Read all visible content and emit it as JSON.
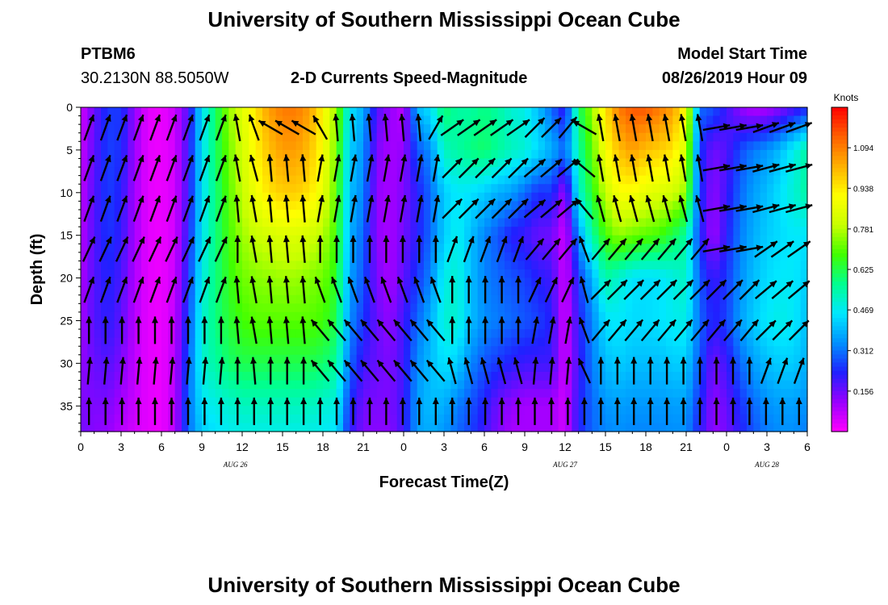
{
  "page": {
    "title": "University of Southern Mississippi Ocean Cube",
    "footer_title": "University of Southern Mississippi Ocean Cube",
    "station_id": "PTBM6",
    "station_coords": "30.2130N 88.5050W",
    "plot_subtitle": "2-D Currents Speed-Magnitude",
    "model_start_label": "Model Start Time",
    "model_start_value": "08/26/2019 Hour 09"
  },
  "chart_data": {
    "type": "heatmap",
    "title": "2-D Currents Speed-Magnitude",
    "xlabel": "Forecast Time(Z)",
    "ylabel": "Depth (ft)",
    "x_tick_labels": [
      "0",
      "3",
      "6",
      "9",
      "12",
      "15",
      "18",
      "21",
      "0",
      "3",
      "6",
      "9",
      "12",
      "15",
      "18",
      "21",
      "0",
      "3",
      "6"
    ],
    "x_range_hours": [
      0,
      54
    ],
    "x_tick_step_hours": 3,
    "date_labels": [
      {
        "text": "AUG 26",
        "hour": 11.5
      },
      {
        "text": "AUG 27",
        "hour": 36
      },
      {
        "text": "AUG 28",
        "hour": 51
      }
    ],
    "y_tick_labels": [
      "0",
      "5",
      "10",
      "15",
      "20",
      "25",
      "30",
      "35"
    ],
    "y_range_ft": [
      0,
      38
    ],
    "y_inverted": true,
    "colorbar": {
      "label": "Knots",
      "tick_labels": [
        "1.094",
        "0.938",
        "0.781",
        "0.625",
        "0.469",
        "0.312",
        "0.156"
      ],
      "range": [
        0,
        1.25
      ],
      "colors": [
        "#ff00ff",
        "#9900ff",
        "#2020ff",
        "#0090ff",
        "#00e8ff",
        "#00ff90",
        "#40ff00",
        "#c8ff00",
        "#ffff00",
        "#ffb000",
        "#ff6000",
        "#ff0000"
      ]
    },
    "speed_grid": {
      "hours": [
        0,
        1,
        2,
        3,
        4,
        5,
        6,
        7,
        8,
        9,
        10,
        11,
        12,
        13,
        14,
        15,
        16,
        17,
        18,
        19,
        20,
        21,
        22,
        23,
        24,
        25,
        26,
        27,
        28,
        29,
        30,
        31,
        32,
        33,
        34,
        35,
        36,
        37,
        38,
        39,
        40,
        41,
        42,
        43,
        44,
        45,
        46,
        47,
        48,
        49,
        50,
        51,
        52,
        53,
        54
      ],
      "depths_ft": [
        0,
        5,
        10,
        15,
        20,
        25,
        30,
        35,
        38
      ],
      "speed_knots": [
        [
          0.05,
          0.16,
          0.25,
          0.25,
          0.12,
          0.03,
          0.02,
          0.06,
          0.18,
          0.45,
          0.6,
          0.75,
          0.85,
          0.95,
          1.05,
          1.1,
          1.1,
          1.05,
          0.92,
          0.75,
          0.45,
          0.38,
          0.18,
          0.12,
          0.07,
          0.4,
          0.45,
          0.6,
          0.55,
          0.55,
          0.58,
          0.55,
          0.5,
          0.48,
          0.4,
          0.3,
          0.2,
          0.6,
          0.75,
          0.95,
          1.1,
          1.15,
          1.15,
          1.1,
          1.05,
          0.9,
          0.3,
          0.28,
          0.2,
          0.12,
          0.08,
          0.09,
          0.13,
          0.18,
          0.23
        ],
        [
          0.06,
          0.17,
          0.26,
          0.24,
          0.11,
          0.03,
          0.02,
          0.05,
          0.2,
          0.45,
          0.6,
          0.72,
          0.82,
          0.92,
          1.0,
          1.05,
          1.05,
          1.0,
          0.9,
          0.72,
          0.42,
          0.35,
          0.14,
          0.1,
          0.12,
          0.28,
          0.34,
          0.52,
          0.55,
          0.58,
          0.6,
          0.56,
          0.52,
          0.5,
          0.44,
          0.38,
          0.3,
          0.55,
          0.7,
          0.9,
          1.0,
          1.05,
          1.0,
          0.98,
          0.95,
          0.82,
          0.25,
          0.15,
          0.18,
          0.27,
          0.32,
          0.35,
          0.4,
          0.48,
          0.55
        ],
        [
          0.07,
          0.18,
          0.26,
          0.22,
          0.1,
          0.03,
          0.02,
          0.05,
          0.2,
          0.45,
          0.58,
          0.7,
          0.8,
          0.88,
          0.95,
          0.98,
          0.98,
          0.95,
          0.86,
          0.7,
          0.4,
          0.33,
          0.12,
          0.1,
          0.14,
          0.22,
          0.3,
          0.42,
          0.46,
          0.45,
          0.42,
          0.38,
          0.36,
          0.3,
          0.24,
          0.25,
          0.1,
          0.5,
          0.65,
          0.8,
          0.9,
          0.9,
          0.86,
          0.84,
          0.82,
          0.75,
          0.25,
          0.12,
          0.2,
          0.3,
          0.36,
          0.4,
          0.45,
          0.5,
          0.55
        ],
        [
          0.08,
          0.18,
          0.25,
          0.21,
          0.1,
          0.03,
          0.02,
          0.05,
          0.22,
          0.46,
          0.58,
          0.68,
          0.76,
          0.8,
          0.82,
          0.84,
          0.84,
          0.82,
          0.78,
          0.68,
          0.38,
          0.3,
          0.12,
          0.1,
          0.15,
          0.22,
          0.3,
          0.42,
          0.48,
          0.4,
          0.33,
          0.28,
          0.22,
          0.2,
          0.16,
          0.15,
          0.05,
          0.35,
          0.55,
          0.68,
          0.75,
          0.72,
          0.7,
          0.68,
          0.62,
          0.55,
          0.24,
          0.1,
          0.22,
          0.32,
          0.38,
          0.42,
          0.44,
          0.46,
          0.45
        ],
        [
          0.09,
          0.18,
          0.23,
          0.19,
          0.09,
          0.03,
          0.02,
          0.06,
          0.24,
          0.48,
          0.58,
          0.66,
          0.72,
          0.74,
          0.75,
          0.76,
          0.76,
          0.74,
          0.72,
          0.65,
          0.36,
          0.28,
          0.14,
          0.1,
          0.17,
          0.25,
          0.33,
          0.48,
          0.5,
          0.4,
          0.33,
          0.3,
          0.28,
          0.26,
          0.22,
          0.2,
          0.05,
          0.25,
          0.38,
          0.55,
          0.5,
          0.45,
          0.44,
          0.45,
          0.48,
          0.52,
          0.28,
          0.2,
          0.25,
          0.34,
          0.4,
          0.44,
          0.46,
          0.46,
          0.42
        ],
        [
          0.1,
          0.18,
          0.22,
          0.17,
          0.08,
          0.03,
          0.02,
          0.07,
          0.26,
          0.5,
          0.58,
          0.64,
          0.68,
          0.7,
          0.7,
          0.7,
          0.7,
          0.7,
          0.68,
          0.62,
          0.34,
          0.25,
          0.16,
          0.12,
          0.2,
          0.3,
          0.38,
          0.5,
          0.5,
          0.4,
          0.34,
          0.32,
          0.3,
          0.28,
          0.26,
          0.22,
          0.04,
          0.22,
          0.33,
          0.45,
          0.46,
          0.44,
          0.44,
          0.45,
          0.47,
          0.48,
          0.3,
          0.22,
          0.26,
          0.36,
          0.42,
          0.46,
          0.48,
          0.46,
          0.4
        ],
        [
          0.12,
          0.16,
          0.18,
          0.14,
          0.07,
          0.03,
          0.02,
          0.08,
          0.28,
          0.5,
          0.55,
          0.6,
          0.62,
          0.62,
          0.62,
          0.62,
          0.62,
          0.62,
          0.6,
          0.56,
          0.3,
          0.2,
          0.16,
          0.14,
          0.2,
          0.34,
          0.4,
          0.45,
          0.42,
          0.33,
          0.28,
          0.25,
          0.22,
          0.2,
          0.2,
          0.2,
          0.05,
          0.2,
          0.32,
          0.4,
          0.42,
          0.4,
          0.4,
          0.4,
          0.42,
          0.42,
          0.28,
          0.15,
          0.2,
          0.3,
          0.36,
          0.4,
          0.42,
          0.42,
          0.38
        ],
        [
          0.14,
          0.14,
          0.14,
          0.1,
          0.06,
          0.03,
          0.02,
          0.08,
          0.3,
          0.45,
          0.48,
          0.5,
          0.52,
          0.52,
          0.52,
          0.52,
          0.52,
          0.52,
          0.5,
          0.48,
          0.24,
          0.15,
          0.14,
          0.14,
          0.2,
          0.36,
          0.4,
          0.38,
          0.32,
          0.28,
          0.22,
          0.15,
          0.12,
          0.1,
          0.1,
          0.1,
          0.05,
          0.22,
          0.3,
          0.35,
          0.36,
          0.35,
          0.35,
          0.35,
          0.36,
          0.36,
          0.24,
          0.12,
          0.16,
          0.24,
          0.3,
          0.34,
          0.36,
          0.36,
          0.34
        ],
        [
          0.15,
          0.13,
          0.12,
          0.08,
          0.05,
          0.03,
          0.02,
          0.08,
          0.3,
          0.42,
          0.45,
          0.47,
          0.48,
          0.48,
          0.48,
          0.48,
          0.48,
          0.48,
          0.47,
          0.45,
          0.22,
          0.14,
          0.13,
          0.13,
          0.2,
          0.36,
          0.38,
          0.35,
          0.3,
          0.26,
          0.2,
          0.14,
          0.1,
          0.1,
          0.1,
          0.1,
          0.05,
          0.22,
          0.3,
          0.33,
          0.34,
          0.33,
          0.33,
          0.33,
          0.34,
          0.34,
          0.22,
          0.12,
          0.15,
          0.22,
          0.28,
          0.32,
          0.34,
          0.34,
          0.32
        ]
      ]
    },
    "direction_grid_deg": {
      "rows": [
        [
          20,
          20,
          20,
          20,
          20,
          20,
          20,
          20,
          20,
          350,
          340,
          300,
          300,
          300,
          330,
          355,
          355,
          355,
          355,
          355,
          355,
          30,
          55,
          55,
          55,
          55,
          55,
          45,
          45,
          40,
          300,
          350,
          350,
          350,
          350,
          350,
          350,
          350,
          80,
          80,
          80,
          70,
          70,
          70
        ],
        [
          20,
          20,
          20,
          20,
          20,
          20,
          20,
          20,
          20,
          350,
          345,
          355,
          355,
          355,
          10,
          10,
          10,
          10,
          10,
          10,
          10,
          10,
          45,
          45,
          45,
          45,
          45,
          50,
          50,
          50,
          310,
          350,
          350,
          350,
          350,
          350,
          350,
          350,
          80,
          80,
          80,
          75,
          75,
          75
        ],
        [
          20,
          20,
          20,
          20,
          20,
          20,
          20,
          20,
          20,
          355,
          350,
          355,
          355,
          355,
          10,
          10,
          10,
          10,
          10,
          10,
          10,
          10,
          45,
          45,
          45,
          45,
          45,
          50,
          50,
          50,
          320,
          345,
          345,
          345,
          345,
          345,
          345,
          345,
          80,
          80,
          80,
          75,
          75,
          75
        ],
        [
          25,
          25,
          25,
          25,
          25,
          25,
          25,
          25,
          25,
          0,
          350,
          355,
          355,
          355,
          0,
          0,
          0,
          0,
          0,
          0,
          0,
          0,
          20,
          20,
          20,
          20,
          20,
          40,
          40,
          40,
          340,
          40,
          40,
          40,
          40,
          40,
          40,
          40,
          80,
          80,
          80,
          55,
          55,
          55
        ],
        [
          20,
          20,
          20,
          20,
          20,
          20,
          20,
          20,
          20,
          355,
          350,
          355,
          355,
          355,
          340,
          340,
          340,
          340,
          340,
          340,
          340,
          340,
          0,
          0,
          0,
          0,
          0,
          25,
          25,
          25,
          345,
          45,
          45,
          45,
          45,
          45,
          45,
          45,
          45,
          45,
          45,
          50,
          50,
          50
        ],
        [
          0,
          0,
          0,
          0,
          0,
          0,
          0,
          0,
          0,
          355,
          350,
          355,
          355,
          355,
          320,
          320,
          320,
          320,
          320,
          320,
          320,
          320,
          0,
          0,
          0,
          0,
          0,
          10,
          10,
          10,
          340,
          40,
          40,
          40,
          40,
          40,
          40,
          40,
          40,
          40,
          40,
          45,
          45,
          45
        ],
        [
          5,
          5,
          5,
          5,
          5,
          5,
          5,
          5,
          5,
          0,
          355,
          0,
          0,
          0,
          320,
          320,
          320,
          320,
          320,
          320,
          320,
          320,
          345,
          345,
          345,
          345,
          345,
          5,
          5,
          5,
          335,
          0,
          0,
          0,
          0,
          0,
          0,
          0,
          0,
          0,
          0,
          20,
          20,
          20
        ],
        [
          0,
          0,
          0,
          0,
          0,
          0,
          0,
          0,
          0,
          0,
          0,
          0,
          0,
          0,
          0,
          0,
          0,
          0,
          0,
          0,
          0,
          0,
          0,
          0,
          0,
          0,
          0,
          0,
          0,
          0,
          0,
          0,
          0,
          0,
          0,
          0,
          0,
          0,
          0,
          0,
          0,
          0,
          0,
          0
        ]
      ]
    }
  }
}
